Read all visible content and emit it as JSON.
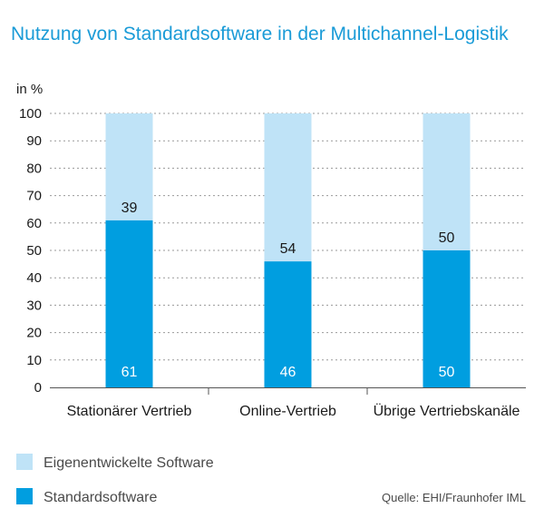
{
  "chart_data": {
    "type": "bar",
    "stacked": true,
    "title": "Nutzung von Standardsoftware in der Multichannel-Logistik",
    "ylabel": "in %",
    "ylim": [
      0,
      100
    ],
    "yticks": [
      0,
      10,
      20,
      30,
      40,
      50,
      60,
      70,
      80,
      90,
      100
    ],
    "grid": "horizontal-dotted",
    "categories": [
      "Stationärer Vertrieb",
      "Online-Vertrieb",
      "Übrige Vertriebskanäle"
    ],
    "series": [
      {
        "name": "Standardsoftware",
        "values": [
          61,
          46,
          50
        ],
        "color": "#009ee0"
      },
      {
        "name": "Eigenentwickelte Software",
        "values": [
          39,
          54,
          50
        ],
        "color": "#bfe3f7"
      }
    ],
    "legend": {
      "placement": "bottom-left",
      "entries": [
        "Eigenentwickelte Software",
        "Standardsoftware"
      ]
    },
    "source": "Quelle: EHI/Fraunhofer IML"
  }
}
